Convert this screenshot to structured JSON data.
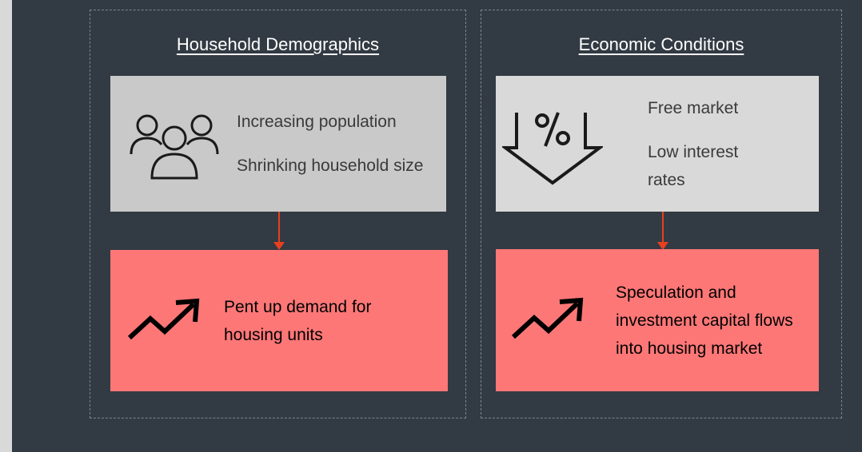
{
  "panels": [
    {
      "title": "Household Demographics",
      "factors": [
        "Increasing population",
        "Shrinking household size"
      ],
      "outcome": "Pent up demand for housing units"
    },
    {
      "title": "Economic Conditions",
      "factors": [
        "Free market",
        "Low interest rates"
      ],
      "outcome": "Speculation and investment capital flows into housing market"
    }
  ]
}
